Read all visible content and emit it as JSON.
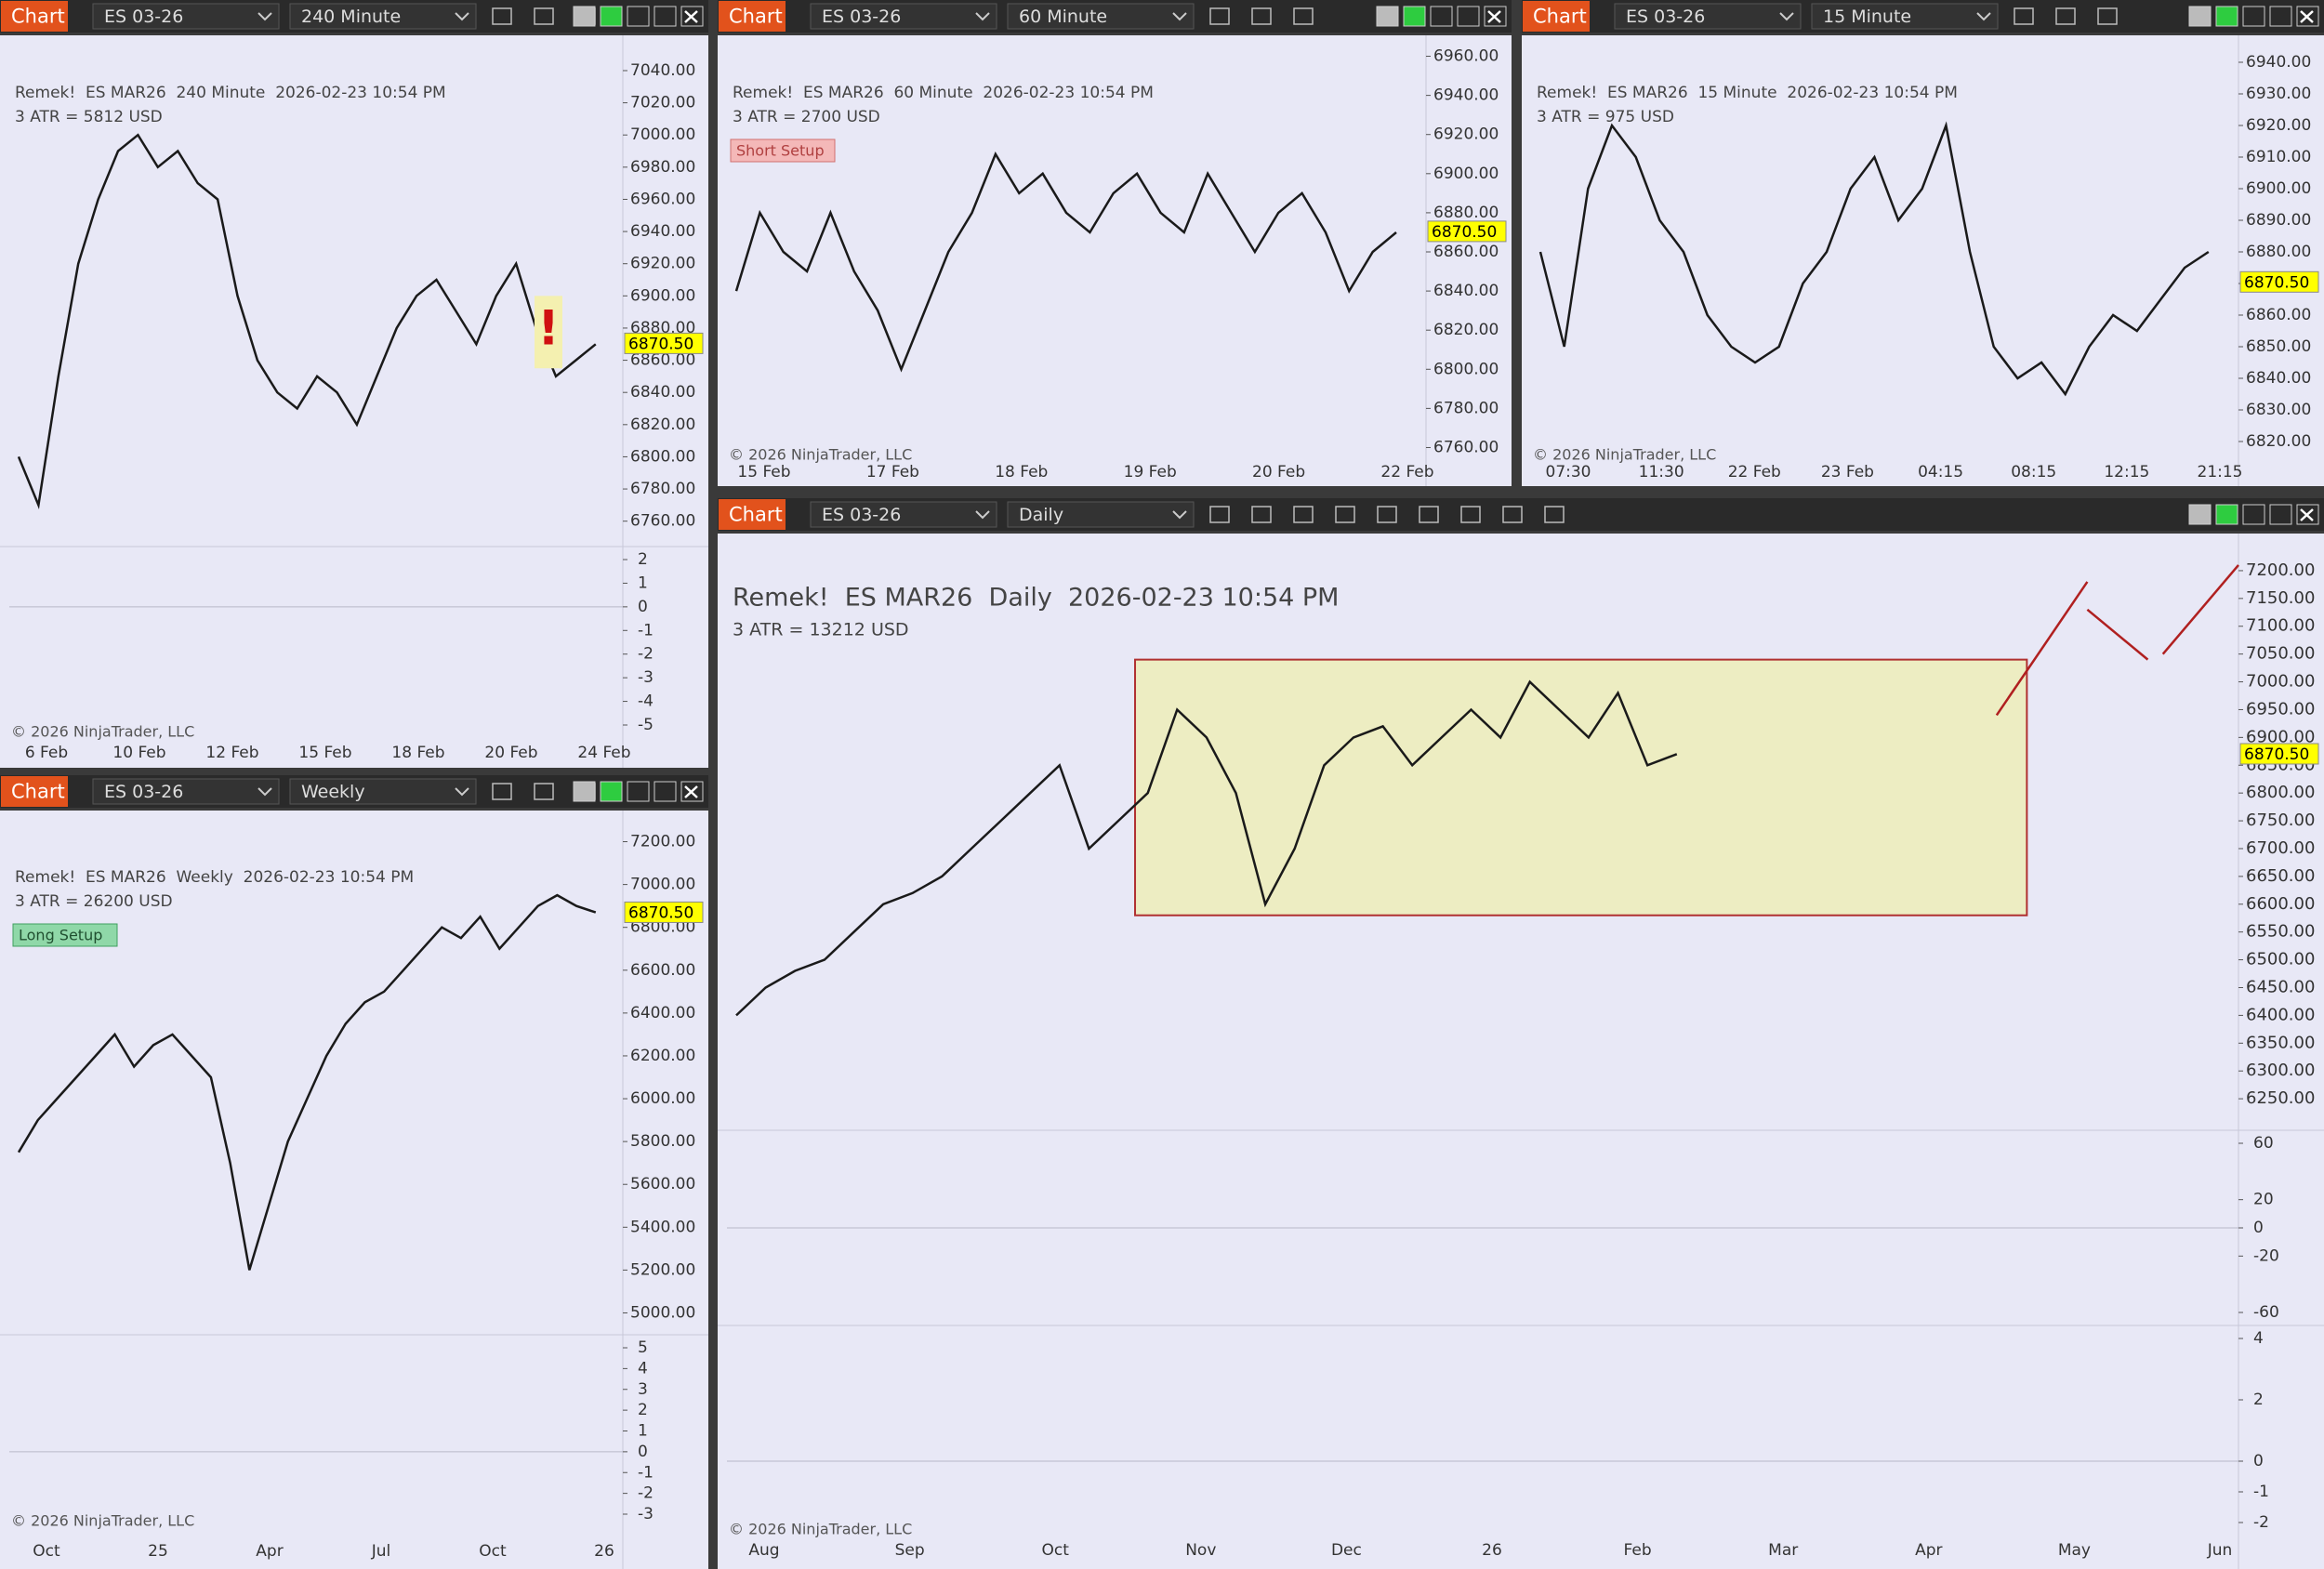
{
  "panels": [
    {
      "tab": "Chart",
      "instrument": "ES 03-26",
      "interval": "240 Minute",
      "title": "Remek!  ES MAR26  240 Minute  2026-02-23 10:54 PM",
      "atr": "3 ATR = 5812 USD",
      "annotation": "!",
      "last_price": {
        "value": 6870.5,
        "label": "6870.50"
      },
      "ylim": [
        6750,
        7055
      ],
      "yticks": [
        {
          "value": 7040,
          "label": "7040.00"
        },
        {
          "value": 7020,
          "label": "7020.00"
        },
        {
          "value": 7000,
          "label": "7000.00"
        },
        {
          "value": 6980,
          "label": "6980.00"
        },
        {
          "value": 6960,
          "label": "6960.00"
        },
        {
          "value": 6940,
          "label": "6940.00"
        },
        {
          "value": 6920,
          "label": "6920.00"
        },
        {
          "value": 6900,
          "label": "6900.00"
        },
        {
          "value": 6880,
          "label": "6880.00"
        },
        {
          "value": 6860,
          "label": "6860.00"
        },
        {
          "value": 6840,
          "label": "6840.00"
        },
        {
          "value": 6820,
          "label": "6820.00"
        },
        {
          "value": 6800,
          "label": "6800.00"
        },
        {
          "value": 6780,
          "label": "6780.00"
        },
        {
          "value": 6760,
          "label": "6760.00"
        }
      ],
      "indicator_ticks": [
        [
          2,
          1,
          0,
          -1,
          -2,
          -3,
          -4,
          -5
        ]
      ],
      "dates": [
        "6 Feb",
        "10 Feb",
        "12 Feb",
        "15 Feb",
        "18 Feb",
        "20 Feb",
        "24 Feb"
      ],
      "copyright": "© 2026 NinjaTrader, LLC",
      "closes": [
        6800,
        6770,
        6850,
        6920,
        6960,
        6990,
        7000,
        6980,
        6990,
        6970,
        6960,
        6900,
        6860,
        6840,
        6830,
        6850,
        6840,
        6820,
        6850,
        6880,
        6900,
        6910,
        6890,
        6870,
        6900,
        6920,
        6880,
        6850,
        6860,
        6870
      ]
    },
    {
      "tab": "Chart",
      "instrument": "ES 03-26",
      "interval": "60 Minute",
      "title": "Remek!  ES MAR26  60 Minute  2026-02-23 10:54 PM",
      "atr": "3 ATR = 2700 USD",
      "annotation": "Short Setup",
      "last_price": {
        "value": 6870.5,
        "label": "6870.50"
      },
      "ylim": [
        6755,
        6965
      ],
      "yticks": [
        {
          "value": 6960,
          "label": "6960.00"
        },
        {
          "value": 6940,
          "label": "6940.00"
        },
        {
          "value": 6920,
          "label": "6920.00"
        },
        {
          "value": 6900,
          "label": "6900.00"
        },
        {
          "value": 6880,
          "label": "6880.00"
        },
        {
          "value": 6860,
          "label": "6860.00"
        },
        {
          "value": 6840,
          "label": "6840.00"
        },
        {
          "value": 6820,
          "label": "6820.00"
        },
        {
          "value": 6800,
          "label": "6800.00"
        },
        {
          "value": 6780,
          "label": "6780.00"
        },
        {
          "value": 6760,
          "label": "6760.00"
        }
      ],
      "indicator_ticks": [],
      "dates": [
        "15 Feb",
        "17 Feb",
        "18 Feb",
        "19 Feb",
        "20 Feb",
        "22 Feb"
      ],
      "copyright": "© 2026 NinjaTrader, LLC",
      "closes": [
        6840,
        6880,
        6860,
        6850,
        6880,
        6850,
        6830,
        6800,
        6830,
        6860,
        6880,
        6910,
        6890,
        6900,
        6880,
        6870,
        6890,
        6900,
        6880,
        6870,
        6900,
        6880,
        6860,
        6880,
        6890,
        6870,
        6840,
        6860,
        6870
      ]
    },
    {
      "tab": "Chart",
      "instrument": "ES 03-26",
      "interval": "15 Minute",
      "title": "Remek!  ES MAR26  15 Minute  2026-02-23 10:54 PM",
      "atr": "3 ATR = 975 USD",
      "last_price": {
        "value": 6870.5,
        "label": "6870.50"
      },
      "ylim": [
        6815,
        6945
      ],
      "yticks": [
        {
          "value": 6940,
          "label": "6940.00"
        },
        {
          "value": 6930,
          "label": "6930.00"
        },
        {
          "value": 6920,
          "label": "6920.00"
        },
        {
          "value": 6910,
          "label": "6910.00"
        },
        {
          "value": 6900,
          "label": "6900.00"
        },
        {
          "value": 6890,
          "label": "6890.00"
        },
        {
          "value": 6880,
          "label": "6880.00"
        },
        {
          "value": 6870,
          "label": "6870.00"
        },
        {
          "value": 6860,
          "label": "6860.00"
        },
        {
          "value": 6850,
          "label": "6850.00"
        },
        {
          "value": 6840,
          "label": "6840.00"
        },
        {
          "value": 6830,
          "label": "6830.00"
        },
        {
          "value": 6820,
          "label": "6820.00"
        }
      ],
      "indicator_ticks": [],
      "dates": [
        "07:30",
        "11:30",
        "22 Feb",
        "23 Feb",
        "04:15",
        "08:15",
        "12:15",
        "21:15"
      ],
      "copyright": "© 2026 NinjaTrader, LLC",
      "closes": [
        6880,
        6850,
        6900,
        6920,
        6910,
        6890,
        6880,
        6860,
        6850,
        6845,
        6850,
        6870,
        6880,
        6900,
        6910,
        6890,
        6900,
        6920,
        6880,
        6850,
        6840,
        6845,
        6835,
        6850,
        6860,
        6855,
        6865,
        6875,
        6880
      ]
    },
    {
      "tab": "Chart",
      "instrument": "ES 03-26",
      "interval": "Weekly",
      "title": "Remek!  ES MAR26  Weekly  2026-02-23 10:54 PM",
      "atr": "3 ATR = 26200 USD",
      "annotation": "Long Setup",
      "last_price": {
        "value": 6870.5,
        "label": "6870.50"
      },
      "ylim": [
        4950,
        7250
      ],
      "yticks": [
        {
          "value": 7200,
          "label": "7200.00"
        },
        {
          "value": 7000,
          "label": "7000.00"
        },
        {
          "value": 6800,
          "label": "6800.00"
        },
        {
          "value": 6600,
          "label": "6600.00"
        },
        {
          "value": 6400,
          "label": "6400.00"
        },
        {
          "value": 6200,
          "label": "6200.00"
        },
        {
          "value": 6000,
          "label": "6000.00"
        },
        {
          "value": 5800,
          "label": "5800.00"
        },
        {
          "value": 5600,
          "label": "5600.00"
        },
        {
          "value": 5400,
          "label": "5400.00"
        },
        {
          "value": 5200,
          "label": "5200.00"
        },
        {
          "value": 5000,
          "label": "5000.00"
        }
      ],
      "indicator_ticks": [
        [
          5,
          4,
          3,
          2,
          1,
          0,
          -1,
          -2,
          -3
        ]
      ],
      "dates": [
        "Oct",
        "25",
        "Apr",
        "Jul",
        "Oct",
        "26"
      ],
      "copyright": "© 2026 NinjaTrader, LLC",
      "closes": [
        5750,
        5900,
        6000,
        6100,
        6200,
        6300,
        6150,
        6250,
        6300,
        6200,
        6100,
        5700,
        5200,
        5500,
        5800,
        6000,
        6200,
        6350,
        6450,
        6500,
        6600,
        6700,
        6800,
        6750,
        6850,
        6700,
        6800,
        6900,
        6950,
        6900,
        6870
      ]
    },
    {
      "tab": "Chart",
      "instrument": "ES 03-26",
      "interval": "Daily",
      "title": "Remek!  ES MAR26  Daily  2026-02-23 10:54 PM",
      "atr": "3 ATR = 13212 USD",
      "last_price": {
        "value": 6870.5,
        "label": "6870.50"
      },
      "ylim": [
        6200,
        7230
      ],
      "yticks": [
        {
          "value": 7200,
          "label": "7200.00"
        },
        {
          "value": 7150,
          "label": "7150.00"
        },
        {
          "value": 7100,
          "label": "7100.00"
        },
        {
          "value": 7050,
          "label": "7050.00"
        },
        {
          "value": 7000,
          "label": "7000.00"
        },
        {
          "value": 6950,
          "label": "6950.00"
        },
        {
          "value": 6900,
          "label": "6900.00"
        },
        {
          "value": 6850,
          "label": "6850.00"
        },
        {
          "value": 6800,
          "label": "6800.00"
        },
        {
          "value": 6750,
          "label": "6750.00"
        },
        {
          "value": 6700,
          "label": "6700.00"
        },
        {
          "value": 6650,
          "label": "6650.00"
        },
        {
          "value": 6600,
          "label": "6600.00"
        },
        {
          "value": 6550,
          "label": "6550.00"
        },
        {
          "value": 6500,
          "label": "6500.00"
        },
        {
          "value": 6450,
          "label": "6450.00"
        },
        {
          "value": 6400,
          "label": "6400.00"
        },
        {
          "value": 6350,
          "label": "6350.00"
        },
        {
          "value": 6300,
          "label": "6300.00"
        },
        {
          "value": 6250,
          "label": "6250.00"
        }
      ],
      "indicator_ticks": [
        [
          60,
          20,
          0,
          -20,
          -60
        ],
        [
          4,
          2,
          0,
          -1,
          -2
        ]
      ],
      "dates": [
        "Aug",
        "Sep",
        "Oct",
        "Nov",
        "Dec",
        "26",
        "Feb",
        "Mar",
        "Apr",
        "May",
        "Jun"
      ],
      "copyright": "© 2026 NinjaTrader, LLC",
      "closes": [
        6400,
        6450,
        6480,
        6500,
        6550,
        6600,
        6620,
        6650,
        6700,
        6750,
        6800,
        6850,
        6700,
        6750,
        6800,
        6950,
        6900,
        6800,
        6600,
        6700,
        6850,
        6900,
        6920,
        6850,
        6900,
        6950,
        6900,
        7000,
        6950,
        6900,
        6980,
        6850,
        6870
      ]
    }
  ]
}
